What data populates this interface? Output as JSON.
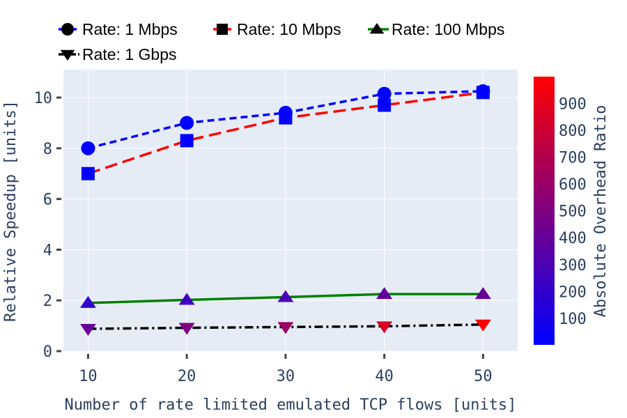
{
  "chart_data": {
    "type": "line",
    "xlabel": "Number of rate limited emulated TCP flows [units]",
    "ylabel": "Relative Speedup [units]",
    "x": [
      10,
      20,
      30,
      40,
      50
    ],
    "xlim": [
      7.5,
      53.5
    ],
    "ylim": [
      0,
      11.1
    ],
    "x_ticks": [
      "10",
      "20",
      "30",
      "40",
      "50"
    ],
    "y_ticks": [
      "0",
      "2",
      "4",
      "6",
      "8",
      "10"
    ],
    "grid": true,
    "legend_position": "top",
    "series": [
      {
        "name": "Rate: 1 Mbps",
        "marker": "circle",
        "line_color": "#0000ff",
        "dash": "dash",
        "values": [
          8.0,
          9.0,
          9.4,
          10.15,
          10.25
        ],
        "overhead": [
          1,
          1,
          1,
          1,
          1
        ]
      },
      {
        "name": "Rate: 10 Mbps",
        "marker": "square",
        "line_color": "#ff0000",
        "dash": "longdash",
        "values": [
          7.0,
          8.3,
          9.2,
          9.7,
          10.2
        ],
        "overhead": [
          10,
          10,
          10,
          10,
          10
        ]
      },
      {
        "name": "Rate: 100 Mbps",
        "marker": "triangle-up",
        "line_color": "#008000",
        "dash": "solid",
        "values": [
          1.9,
          2.02,
          2.13,
          2.25,
          2.25
        ],
        "overhead": [
          200,
          250,
          300,
          380,
          400
        ]
      },
      {
        "name": "Rate: 1 Gbps",
        "marker": "triangle-down",
        "line_color": "#000000",
        "dash": "dashdot",
        "values": [
          0.88,
          0.92,
          0.95,
          0.98,
          1.05
        ],
        "overhead": [
          400,
          500,
          600,
          850,
          1000
        ]
      }
    ],
    "colorbar": {
      "title": "Absolute Overhead Ratio",
      "range": [
        1,
        1000
      ],
      "ticks": [
        "100",
        "200",
        "300",
        "400",
        "500",
        "600",
        "700",
        "800",
        "900"
      ],
      "colorscale": [
        "#0000ff",
        "#ff0000"
      ]
    }
  }
}
